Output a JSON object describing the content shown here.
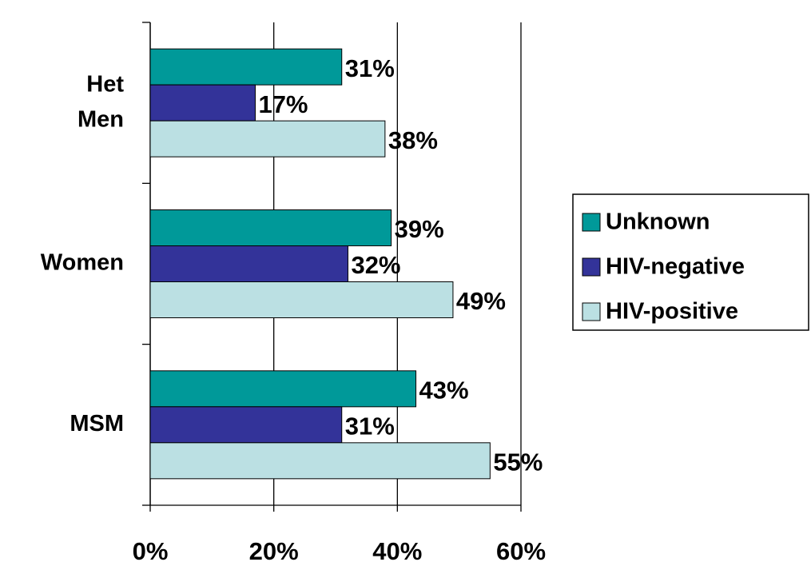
{
  "chart_data": {
    "type": "barh",
    "categories": [
      "Het Men",
      "Women",
      "MSM"
    ],
    "series": [
      {
        "name": "Unknown",
        "color": "#009999",
        "values": [
          31,
          39,
          43
        ],
        "value_labels": [
          "31%",
          "39%",
          "43%"
        ]
      },
      {
        "name": "HIV-negative",
        "color": "#333399",
        "values": [
          17,
          32,
          31
        ],
        "value_labels": [
          "17%",
          "32%",
          "31%"
        ]
      },
      {
        "name": "HIV-positive",
        "color": "#bbe0e3",
        "values": [
          38,
          49,
          55
        ],
        "value_labels": [
          "38%",
          "49%",
          "55%"
        ]
      }
    ],
    "xlim": [
      0,
      60
    ],
    "xticks": [
      {
        "value": 0,
        "label": "0%"
      },
      {
        "value": 20,
        "label": "20%"
      },
      {
        "value": 40,
        "label": "40%"
      },
      {
        "value": 60,
        "label": "60%"
      }
    ],
    "grid": true,
    "legend": "right"
  }
}
